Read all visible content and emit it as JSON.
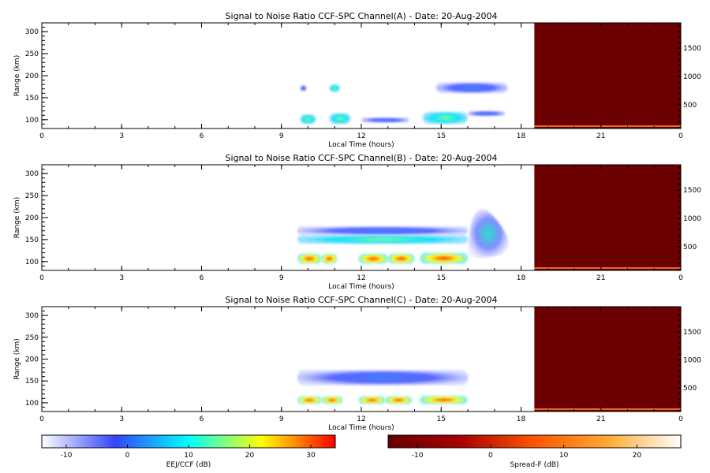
{
  "figure": {
    "xlabel": "Local Time (hours)",
    "ylabel": "Range (km)"
  },
  "chart_data": [
    {
      "type": "heatmap",
      "title": "Signal to Noise Ratio CCF-SPC Channel(A) - Date: 20-Aug-2004",
      "xlabel": "Local Time (hours)",
      "ylabel": "Range (km)",
      "x_ticks": [
        "0",
        "3",
        "6",
        "9",
        "12",
        "15",
        "18",
        "21",
        "0"
      ],
      "y_ticks": [
        "100",
        "150",
        "200",
        "250",
        "300"
      ],
      "right_ticks": [
        "500",
        "1000",
        "1500"
      ],
      "xlim": [
        0,
        24
      ],
      "ylim": [
        80,
        320
      ],
      "right_ylim": [
        80,
        1950
      ],
      "night_start_hour": 18.5,
      "echoes": [
        {
          "t0": 9.7,
          "t1": 9.95,
          "r0": 165,
          "r1": 178,
          "level": "low"
        },
        {
          "t0": 10.8,
          "t1": 11.2,
          "r0": 163,
          "r1": 180,
          "level": "mid"
        },
        {
          "t0": 9.7,
          "t1": 10.3,
          "r0": 90,
          "r1": 112,
          "level": "mid"
        },
        {
          "t0": 10.8,
          "t1": 11.6,
          "r0": 90,
          "r1": 115,
          "level": "mid"
        },
        {
          "t0": 12.0,
          "t1": 13.8,
          "r0": 93,
          "r1": 105,
          "level": "low"
        },
        {
          "t0": 14.3,
          "t1": 16.0,
          "r0": 90,
          "r1": 118,
          "level": "mid"
        },
        {
          "t0": 14.8,
          "t1": 17.5,
          "r0": 160,
          "r1": 185,
          "level": "low"
        },
        {
          "t0": 16.0,
          "t1": 17.4,
          "r0": 108,
          "r1": 120,
          "level": "low"
        }
      ]
    },
    {
      "type": "heatmap",
      "title": "Signal to Noise Ratio CCF-SPC Channel(B) - Date: 20-Aug-2004",
      "xlabel": "Local Time (hours)",
      "ylabel": "Range (km)",
      "x_ticks": [
        "0",
        "3",
        "6",
        "9",
        "12",
        "15",
        "18",
        "21",
        "0"
      ],
      "y_ticks": [
        "100",
        "150",
        "200",
        "250",
        "300"
      ],
      "right_ticks": [
        "500",
        "1000",
        "1500"
      ],
      "xlim": [
        0,
        24
      ],
      "ylim": [
        80,
        320
      ],
      "right_ylim": [
        80,
        1950
      ],
      "night_start_hour": 18.5,
      "echoes": [
        {
          "t0": 9.6,
          "t1": 16.0,
          "r0": 160,
          "r1": 180,
          "level": "low"
        },
        {
          "t0": 9.6,
          "t1": 16.0,
          "r0": 140,
          "r1": 160,
          "level": "mid"
        },
        {
          "t0": 9.6,
          "t1": 10.5,
          "r0": 95,
          "r1": 118,
          "level": "high"
        },
        {
          "t0": 10.5,
          "t1": 11.1,
          "r0": 95,
          "r1": 118,
          "level": "high"
        },
        {
          "t0": 11.9,
          "t1": 13.0,
          "r0": 95,
          "r1": 118,
          "level": "high"
        },
        {
          "t0": 13.0,
          "t1": 14.0,
          "r0": 95,
          "r1": 118,
          "level": "high"
        },
        {
          "t0": 14.2,
          "t1": 16.0,
          "r0": 95,
          "r1": 120,
          "level": "high"
        },
        {
          "t0": 16.0,
          "t1": 17.8,
          "r0": 108,
          "r1": 240,
          "level": "spreadf"
        }
      ]
    },
    {
      "type": "heatmap",
      "title": "Signal to Noise Ratio CCF-SPC Channel(C) - Date: 20-Aug-2004",
      "xlabel": "Local Time (hours)",
      "ylabel": "Range (km)",
      "x_ticks": [
        "0",
        "3",
        "6",
        "9",
        "12",
        "15",
        "18",
        "21",
        "0"
      ],
      "y_ticks": [
        "100",
        "150",
        "200",
        "250",
        "300"
      ],
      "right_ticks": [
        "500",
        "1000",
        "1500"
      ],
      "xlim": [
        0,
        24
      ],
      "ylim": [
        80,
        320
      ],
      "right_ylim": [
        80,
        1950
      ],
      "night_start_hour": 18.5,
      "echoes": [
        {
          "t0": 9.6,
          "t1": 16.0,
          "r0": 140,
          "r1": 175,
          "level": "low"
        },
        {
          "t0": 9.6,
          "t1": 10.5,
          "r0": 97,
          "r1": 115,
          "level": "high"
        },
        {
          "t0": 10.5,
          "t1": 11.3,
          "r0": 97,
          "r1": 115,
          "level": "high"
        },
        {
          "t0": 11.9,
          "t1": 12.9,
          "r0": 97,
          "r1": 115,
          "level": "high"
        },
        {
          "t0": 12.9,
          "t1": 13.9,
          "r0": 97,
          "r1": 115,
          "level": "high"
        },
        {
          "t0": 14.2,
          "t1": 16.0,
          "r0": 97,
          "r1": 116,
          "level": "high"
        }
      ]
    }
  ],
  "colorbars": [
    {
      "label": "EEJ/CCF (dB)",
      "ticks": [
        "-10",
        "0",
        "10",
        "20",
        "30"
      ],
      "range": [
        -14,
        34
      ],
      "tick_values": [
        -10,
        0,
        10,
        20,
        30
      ],
      "colors": [
        "#ffffff",
        "#3344ff",
        "#00ffff",
        "#ffff00",
        "#ff0000"
      ]
    },
    {
      "label": "Spread-F (dB)",
      "ticks": [
        "-10",
        "0",
        "10",
        "20"
      ],
      "range": [
        -14,
        26
      ],
      "tick_values": [
        -10,
        0,
        10,
        20
      ],
      "colors": [
        "#660000",
        "#aa0000",
        "#ff5500",
        "#ffaa33",
        "#ffffff"
      ]
    }
  ]
}
